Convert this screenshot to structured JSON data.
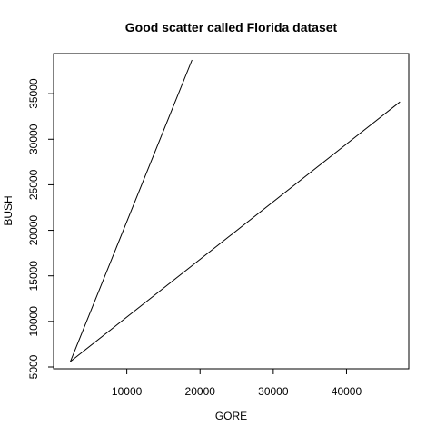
{
  "chart_data": {
    "type": "line",
    "title": "Good scatter called Florida dataset",
    "xlabel": "GORE",
    "ylabel": "BUSH",
    "xlim": [
      0,
      48500
    ],
    "ylim": [
      4800,
      39400
    ],
    "xticks": [
      10000,
      20000,
      30000,
      40000
    ],
    "xtick_labels": [
      "10000",
      "20000",
      "30000",
      "40000"
    ],
    "yticks": [
      5000,
      10000,
      15000,
      20000,
      25000,
      30000,
      35000
    ],
    "ytick_labels": [
      "5000",
      "10000",
      "15000",
      "20000",
      "25000",
      "30000",
      "35000"
    ],
    "grid": false,
    "legend": "none",
    "series": [
      {
        "x": [
          2300,
          18900
        ],
        "y": [
          5600,
          38700
        ]
      },
      {
        "x": [
          2300,
          47300
        ],
        "y": [
          5600,
          34100
        ]
      }
    ],
    "colors": {
      "line": "#000000",
      "background": "#ffffff"
    }
  }
}
